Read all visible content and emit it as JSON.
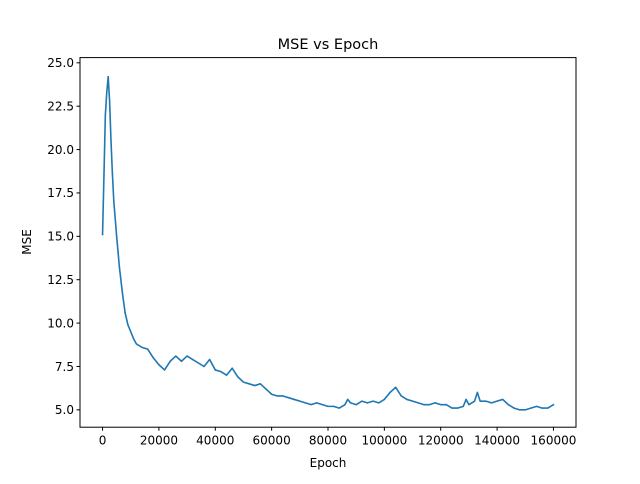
{
  "chart_data": {
    "type": "line",
    "title": "MSE vs Epoch",
    "xlabel": "Epoch",
    "ylabel": "MSE",
    "xlim": [
      -8000,
      168000
    ],
    "ylim": [
      4.0,
      25.3
    ],
    "xticks": [
      0,
      20000,
      40000,
      60000,
      80000,
      100000,
      120000,
      140000,
      160000
    ],
    "xtick_labels": [
      "0",
      "20000",
      "40000",
      "60000",
      "80000",
      "100000",
      "120000",
      "140000",
      "160000"
    ],
    "yticks": [
      5.0,
      7.5,
      10.0,
      12.5,
      15.0,
      17.5,
      20.0,
      22.5,
      25.0
    ],
    "ytick_labels": [
      "5.0",
      "7.5",
      "10.0",
      "12.5",
      "15.0",
      "17.5",
      "20.0",
      "22.5",
      "25.0"
    ],
    "grid": false,
    "legend": false,
    "series": [
      {
        "color": "#1f77b4",
        "x": [
          0,
          500,
          1000,
          1500,
          2000,
          2500,
          3000,
          3500,
          4000,
          5000,
          6000,
          7000,
          8000,
          9000,
          10000,
          11000,
          12000,
          14000,
          16000,
          18000,
          20000,
          22000,
          24000,
          26000,
          28000,
          30000,
          32000,
          34000,
          36000,
          38000,
          40000,
          42000,
          44000,
          46000,
          48000,
          50000,
          52000,
          54000,
          56000,
          58000,
          60000,
          62000,
          64000,
          66000,
          68000,
          70000,
          72000,
          74000,
          76000,
          78000,
          80000,
          82000,
          84000,
          86000,
          87000,
          88000,
          90000,
          92000,
          94000,
          96000,
          98000,
          100000,
          102000,
          104000,
          106000,
          108000,
          110000,
          112000,
          114000,
          116000,
          118000,
          120000,
          122000,
          124000,
          126000,
          128000,
          129000,
          130000,
          132000,
          133000,
          134000,
          136000,
          138000,
          140000,
          142000,
          144000,
          146000,
          148000,
          150000,
          152000,
          154000,
          156000,
          158000,
          160000
        ],
        "y": [
          15.1,
          18.5,
          22.0,
          23.3,
          24.2,
          22.8,
          20.5,
          18.6,
          17.0,
          15.0,
          13.2,
          11.8,
          10.6,
          9.9,
          9.5,
          9.1,
          8.8,
          8.6,
          8.5,
          8.0,
          7.6,
          7.3,
          7.8,
          8.1,
          7.8,
          8.1,
          7.9,
          7.7,
          7.5,
          7.9,
          7.3,
          7.2,
          7.0,
          7.4,
          6.9,
          6.6,
          6.5,
          6.4,
          6.5,
          6.2,
          5.9,
          5.8,
          5.8,
          5.7,
          5.6,
          5.5,
          5.4,
          5.3,
          5.4,
          5.3,
          5.2,
          5.2,
          5.1,
          5.3,
          5.6,
          5.4,
          5.3,
          5.5,
          5.4,
          5.5,
          5.4,
          5.6,
          6.0,
          6.3,
          5.8,
          5.6,
          5.5,
          5.4,
          5.3,
          5.3,
          5.4,
          5.3,
          5.3,
          5.1,
          5.1,
          5.2,
          5.6,
          5.3,
          5.5,
          6.0,
          5.5,
          5.5,
          5.4,
          5.5,
          5.6,
          5.3,
          5.1,
          5.0,
          5.0,
          5.1,
          5.2,
          5.1,
          5.1,
          5.3
        ]
      }
    ]
  }
}
